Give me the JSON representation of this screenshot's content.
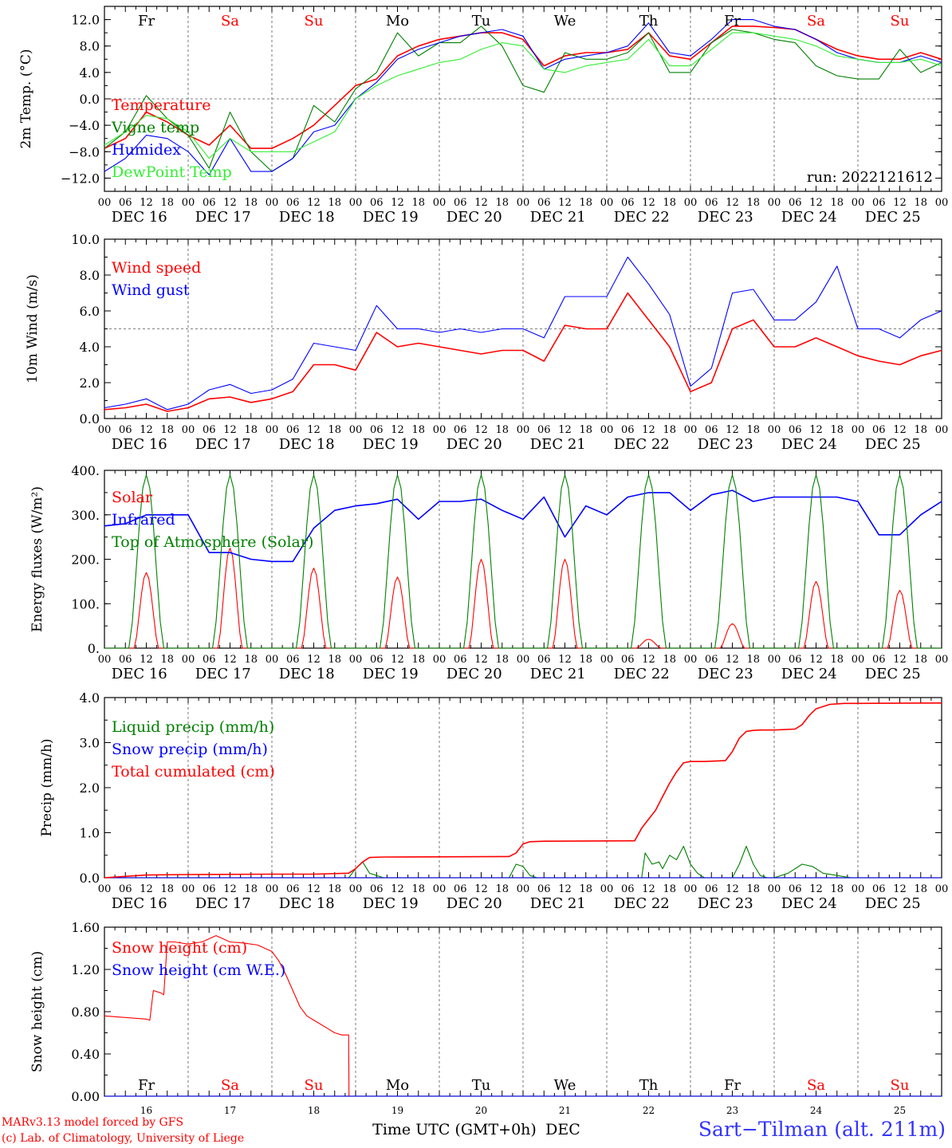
{
  "days": {
    "names": [
      "Fr",
      "Sa",
      "Su",
      "Mo",
      "Tu",
      "We",
      "Th",
      "Fr",
      "Sa",
      "Su"
    ],
    "weekend_color": "#ff0000",
    "weekday_color": "#000000",
    "dates": [
      "DEC 16",
      "DEC 17",
      "DEC 18",
      "DEC 19",
      "DEC 20",
      "DEC 21",
      "DEC 22",
      "DEC 23",
      "DEC 24",
      "DEC 25"
    ],
    "day_numbers": [
      "16",
      "17",
      "18",
      "19",
      "20",
      "21",
      "22",
      "23",
      "24",
      "25"
    ],
    "hour_labels": [
      "00",
      "06",
      "12",
      "18"
    ],
    "final_hour_label": "00"
  },
  "run_label": "run: 2022121612",
  "footer": {
    "credit_line1": "MARv3.13 model forced by GFS",
    "credit_line2": "(c) Lab. of Climatology, University of Liege",
    "time_axis_label": "Time UTC (GMT+0h)",
    "month": "DEC",
    "station": "Sart−Tilman (alt. 211m)"
  },
  "colors": {
    "red": "#ff0000",
    "green": "#008000",
    "blue": "#0000ff",
    "lightgreen": "#33ee33"
  },
  "chart_data": [
    {
      "type": "line",
      "ylabel": "2m Temp. (°C)",
      "ylim": [
        -14,
        14
      ],
      "yticks": [
        "12.0",
        "8.0",
        "4.0",
        "0.0",
        "−4.0",
        "−8.0",
        "−12.0"
      ],
      "ytick_values": [
        12,
        8,
        4,
        0,
        -4,
        -8,
        -12
      ],
      "reference_line": 0,
      "x_unit": "hours since Dec 16 00 UTC",
      "series": [
        {
          "name": "Temperature",
          "color": "#ff0000",
          "x": [
            0,
            6,
            12,
            18,
            24,
            30,
            36,
            42,
            48,
            54,
            60,
            66,
            72,
            78,
            84,
            90,
            96,
            102,
            108,
            114,
            120,
            126,
            132,
            138,
            144,
            150,
            156,
            162,
            168,
            174,
            180,
            186,
            192,
            198,
            204,
            210,
            216,
            222,
            228,
            234,
            240
          ],
          "y": [
            -7.5,
            -6,
            -2,
            -3.5,
            -5.5,
            -7,
            -4,
            -7.5,
            -7.5,
            -6,
            -4,
            -1,
            2,
            3,
            6.5,
            8,
            9,
            9.5,
            10,
            10,
            9,
            5,
            6.5,
            7,
            7,
            7.5,
            10,
            6.5,
            6,
            8.5,
            11,
            11,
            10.8,
            10.5,
            9,
            7.5,
            6.5,
            6,
            6,
            7,
            6
          ]
        },
        {
          "name": "Vigne temp",
          "color": "#008000",
          "x": [
            0,
            6,
            12,
            18,
            24,
            30,
            36,
            42,
            48,
            54,
            60,
            66,
            72,
            78,
            84,
            90,
            96,
            102,
            108,
            114,
            120,
            126,
            132,
            138,
            144,
            150,
            156,
            162,
            168,
            174,
            180,
            186,
            192,
            198,
            204,
            210,
            216,
            222,
            228,
            234,
            240
          ],
          "y": [
            -7.5,
            -5,
            0.5,
            -3,
            -5.5,
            -10.5,
            -2,
            -8,
            -11,
            -9,
            -1,
            -3.5,
            1.5,
            4,
            10,
            6.5,
            8.5,
            8.5,
            11,
            8,
            2,
            1,
            7,
            6,
            6,
            7,
            10,
            4,
            4,
            8.5,
            10.5,
            10,
            9,
            8.5,
            5,
            3.5,
            3,
            3,
            7.5,
            4,
            5.5
          ]
        },
        {
          "name": "Humidex",
          "color": "#0000ff",
          "x": [
            0,
            6,
            12,
            18,
            24,
            30,
            36,
            42,
            48,
            54,
            60,
            66,
            72,
            78,
            84,
            90,
            96,
            102,
            108,
            114,
            120,
            126,
            132,
            138,
            144,
            150,
            156,
            162,
            168,
            174,
            180,
            186,
            192,
            198,
            204,
            210,
            216,
            222,
            228,
            234,
            240
          ],
          "y": [
            -11,
            -9,
            -5.5,
            -6,
            -8,
            -11.5,
            -6,
            -11,
            -11,
            -9,
            -5,
            -4,
            0,
            2.5,
            6,
            7.5,
            8.5,
            9.5,
            10,
            10.5,
            9.5,
            4.5,
            6,
            6.5,
            7,
            8,
            11.5,
            7,
            6.5,
            9,
            12,
            12,
            11,
            10.5,
            9,
            7,
            6,
            5.5,
            5.5,
            6.5,
            5.5
          ]
        },
        {
          "name": "DewPoint Temp",
          "color": "#33ee33",
          "x": [
            0,
            6,
            12,
            18,
            24,
            30,
            36,
            42,
            48,
            54,
            60,
            66,
            72,
            78,
            84,
            90,
            96,
            102,
            108,
            114,
            120,
            126,
            132,
            138,
            144,
            150,
            156,
            162,
            168,
            174,
            180,
            186,
            192,
            198,
            204,
            210,
            216,
            222,
            228,
            234,
            240
          ],
          "y": [
            -7,
            -5,
            -2.5,
            -3,
            -5,
            -9,
            -6,
            -8,
            -8,
            -8,
            -6.5,
            -5,
            0,
            2,
            3.5,
            4.5,
            5.5,
            6,
            7.5,
            8.5,
            8,
            4.5,
            4,
            5,
            5.5,
            6,
            9,
            5,
            5,
            7.5,
            10,
            10,
            9.5,
            9,
            8,
            6.5,
            6,
            5.5,
            5.5,
            6,
            5
          ]
        }
      ]
    },
    {
      "type": "line",
      "ylabel": "10m Wind (m/s)",
      "ylim": [
        0,
        10
      ],
      "yticks": [
        "10.0",
        "8.0",
        "6.0",
        "4.0",
        "2.0",
        "0.0"
      ],
      "ytick_values": [
        10,
        8,
        6,
        4,
        2,
        0
      ],
      "reference_line": 5,
      "x_unit": "hours since Dec 16 00 UTC",
      "series": [
        {
          "name": "Wind speed",
          "color": "#ff0000",
          "x": [
            0,
            6,
            12,
            18,
            24,
            30,
            36,
            42,
            48,
            54,
            60,
            66,
            72,
            78,
            84,
            90,
            96,
            102,
            108,
            114,
            120,
            126,
            132,
            138,
            144,
            150,
            156,
            162,
            168,
            174,
            180,
            186,
            192,
            198,
            204,
            210,
            216,
            222,
            228,
            234,
            240
          ],
          "y": [
            0.5,
            0.6,
            0.8,
            0.4,
            0.6,
            1.1,
            1.2,
            0.9,
            1.1,
            1.5,
            3,
            3,
            2.7,
            4.8,
            4,
            4.2,
            4,
            3.8,
            3.6,
            3.8,
            3.8,
            3.2,
            5.2,
            5,
            5,
            7,
            5.5,
            4,
            1.5,
            2,
            5,
            5.5,
            4,
            4,
            4.5,
            4,
            3.5,
            3.2,
            3,
            3.5,
            3.8
          ]
        },
        {
          "name": "Wind gust",
          "color": "#0000ff",
          "x": [
            0,
            6,
            12,
            18,
            24,
            30,
            36,
            42,
            48,
            54,
            60,
            66,
            72,
            78,
            84,
            90,
            96,
            102,
            108,
            114,
            120,
            126,
            132,
            138,
            144,
            150,
            156,
            162,
            168,
            174,
            180,
            186,
            192,
            198,
            204,
            210,
            216,
            222,
            228,
            234,
            240
          ],
          "y": [
            0.6,
            0.8,
            1.1,
            0.5,
            0.8,
            1.6,
            1.9,
            1.4,
            1.6,
            2.2,
            4.2,
            4,
            3.8,
            6.3,
            5,
            5,
            4.8,
            5,
            4.8,
            5,
            5,
            4.5,
            6.8,
            6.8,
            6.8,
            9,
            7.5,
            5.8,
            1.8,
            2.8,
            7,
            7.2,
            5.5,
            5.5,
            6.5,
            8.5,
            5,
            5,
            4.5,
            5.5,
            6
          ]
        }
      ]
    },
    {
      "type": "line",
      "ylabel": "Energy fluxes (W/m²)",
      "ylim": [
        0,
        400
      ],
      "yticks": [
        "400.",
        "300.",
        "200.",
        "100.",
        "0."
      ],
      "ytick_values": [
        400,
        300,
        200,
        100,
        0
      ],
      "x_unit": "hours since Dec 16 00 UTC",
      "series": [
        {
          "name": "Solar",
          "color": "#ff0000",
          "diurnal": true,
          "peaks": [
            170,
            225,
            180,
            160,
            200,
            200,
            20,
            55,
            150,
            130
          ]
        },
        {
          "name": "Infrared",
          "color": "#0000ff",
          "x": [
            0,
            6,
            12,
            18,
            24,
            30,
            36,
            42,
            48,
            54,
            60,
            66,
            72,
            78,
            84,
            90,
            96,
            102,
            108,
            114,
            120,
            126,
            132,
            138,
            144,
            150,
            156,
            162,
            168,
            174,
            180,
            186,
            192,
            198,
            204,
            210,
            216,
            222,
            228,
            234,
            240
          ],
          "y": [
            275,
            280,
            300,
            300,
            300,
            215,
            215,
            200,
            195,
            195,
            270,
            310,
            320,
            325,
            335,
            290,
            330,
            330,
            335,
            310,
            290,
            340,
            250,
            320,
            300,
            340,
            350,
            350,
            310,
            345,
            355,
            330,
            340,
            340,
            340,
            340,
            330,
            255,
            255,
            300,
            330
          ]
        },
        {
          "name": "Top of Atmosphere (Solar)",
          "color": "#008000",
          "diurnal": true,
          "peaks": [
            390,
            390,
            390,
            390,
            390,
            390,
            390,
            390,
            390,
            390
          ]
        }
      ]
    },
    {
      "type": "line",
      "ylabel": "Precip (mm/h)",
      "ylim": [
        0,
        4
      ],
      "yticks": [
        "4.0",
        "3.0",
        "2.0",
        "1.0",
        "0.0"
      ],
      "ytick_values": [
        4,
        3,
        2,
        1,
        0
      ],
      "x_unit": "hours since Dec 16 00 UTC",
      "series": [
        {
          "name": "Liquid precip (mm/h)",
          "color": "#008000",
          "x": [
            0,
            60,
            70,
            72,
            74,
            76,
            80,
            116,
            118,
            120,
            122,
            124,
            126,
            154,
            155,
            157,
            159,
            160,
            162,
            164,
            166,
            168,
            170,
            172,
            180,
            182,
            184,
            186,
            188,
            190,
            192,
            196,
            200,
            203,
            206,
            210,
            214,
            218,
            240
          ],
          "y": [
            0,
            0,
            0,
            0.2,
            0.35,
            0.1,
            0,
            0,
            0.3,
            0.25,
            0.05,
            0,
            0,
            0,
            0.55,
            0.3,
            0.35,
            0.2,
            0.5,
            0.4,
            0.7,
            0.3,
            0.1,
            0,
            0,
            0.3,
            0.7,
            0.3,
            0.05,
            0,
            0,
            0.1,
            0.3,
            0.25,
            0.1,
            0.05,
            0,
            0,
            0
          ]
        },
        {
          "name": "Snow precip (mm/h)",
          "color": "#0000ff",
          "x": [
            0,
            240
          ],
          "y": [
            0,
            0
          ]
        },
        {
          "name": "Total cumulated (cm)",
          "color": "#ff0000",
          "x": [
            0,
            12,
            24,
            48,
            60,
            70,
            72,
            74,
            76,
            80,
            116,
            118,
            120,
            122,
            126,
            150,
            152,
            154,
            156,
            158,
            160,
            162,
            164,
            166,
            168,
            170,
            172,
            178,
            180,
            182,
            184,
            186,
            188,
            190,
            192,
            198,
            200,
            202,
            204,
            206,
            208,
            210,
            212,
            214,
            216,
            240
          ],
          "y": [
            0,
            0.06,
            0.07,
            0.08,
            0.08,
            0.1,
            0.2,
            0.35,
            0.45,
            0.46,
            0.47,
            0.55,
            0.75,
            0.8,
            0.81,
            0.82,
            0.82,
            1.1,
            1.3,
            1.5,
            1.8,
            2.1,
            2.35,
            2.55,
            2.58,
            2.58,
            2.58,
            2.6,
            2.8,
            3.1,
            3.25,
            3.27,
            3.28,
            3.28,
            3.28,
            3.3,
            3.4,
            3.6,
            3.75,
            3.8,
            3.85,
            3.86,
            3.87,
            3.87,
            3.87,
            3.88
          ]
        }
      ]
    },
    {
      "type": "line",
      "ylabel": "Snow height (cm)",
      "ylim": [
        0,
        1.6
      ],
      "yticks": [
        "1.60",
        "1.20",
        "0.80",
        "0.40",
        "0.00"
      ],
      "ytick_values": [
        1.6,
        1.2,
        0.8,
        0.4,
        0
      ],
      "x_unit": "hours since Dec 16 00 UTC",
      "series": [
        {
          "name": "Snow height (cm)",
          "color": "#ff0000",
          "x": [
            0,
            12,
            13,
            14,
            16,
            17,
            18,
            20,
            24,
            28,
            32,
            36,
            40,
            44,
            48,
            50,
            52,
            54,
            56,
            58,
            60,
            62,
            64,
            66,
            68,
            70,
            70.1,
            240
          ],
          "y": [
            0.76,
            0.73,
            0.72,
            1.0,
            0.98,
            0.96,
            1.46,
            1.46,
            1.44,
            1.46,
            1.52,
            1.46,
            1.45,
            1.43,
            1.37,
            1.28,
            1.15,
            1.0,
            0.85,
            0.76,
            0.72,
            0.68,
            0.64,
            0.6,
            0.58,
            0.58,
            0,
            0
          ]
        },
        {
          "name": "Snow height (cm W.E.)",
          "color": "#0000ff",
          "x": [
            0,
            240
          ],
          "y": [
            0,
            0
          ]
        }
      ]
    }
  ]
}
